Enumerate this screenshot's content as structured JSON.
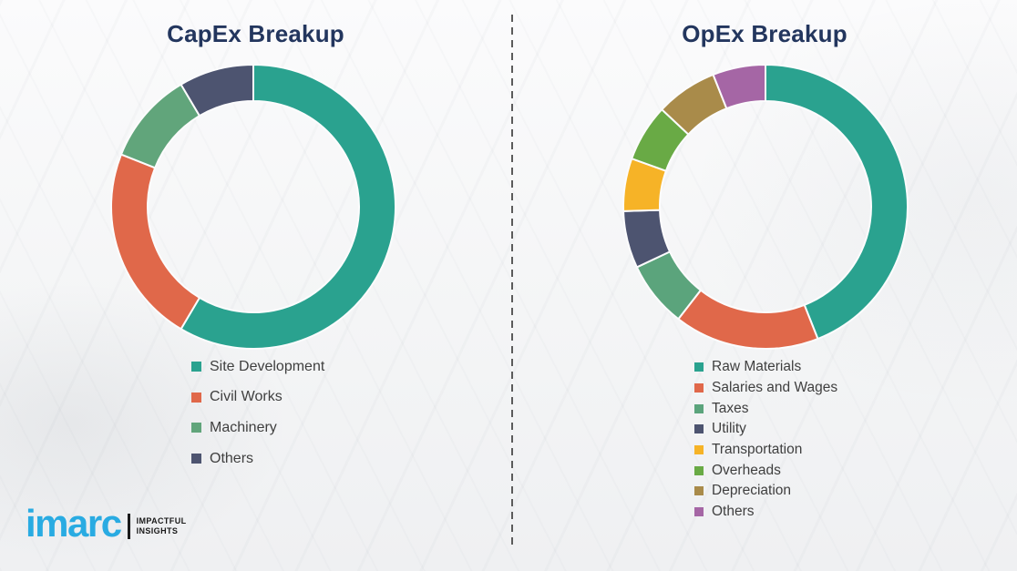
{
  "chart_data": [
    {
      "type": "donut",
      "title": "CapEx Breakup",
      "unit": "percent",
      "start_angle_deg": 0,
      "direction": "clockwise",
      "legend_position": "below-left",
      "segments": [
        {
          "label": "Site Development",
          "value": 58.5,
          "color": "#2aa28f"
        },
        {
          "label": "Civil Works",
          "value": 22.5,
          "color": "#e0684a"
        },
        {
          "label": "Machinery",
          "value": 10.5,
          "color": "#61a57b"
        },
        {
          "label": "Others",
          "value": 8.5,
          "color": "#4d5470"
        }
      ]
    },
    {
      "type": "donut",
      "title": "OpEx Breakup",
      "unit": "percent",
      "start_angle_deg": 0,
      "direction": "clockwise",
      "legend_position": "below-left",
      "segments": [
        {
          "label": "Raw Materials",
          "value": 44,
          "color": "#2aa28f"
        },
        {
          "label": "Salaries and Wages",
          "value": 16.5,
          "color": "#e0684a"
        },
        {
          "label": "Taxes",
          "value": 7.5,
          "color": "#5ba47c"
        },
        {
          "label": "Utility",
          "value": 6.5,
          "color": "#4d5470"
        },
        {
          "label": "Transportation",
          "value": 6,
          "color": "#f6b327"
        },
        {
          "label": "Overheads",
          "value": 6.5,
          "color": "#69aa45"
        },
        {
          "label": "Depreciation",
          "value": 7,
          "color": "#a98b4a"
        },
        {
          "label": "Others",
          "value": 6,
          "color": "#a566a5"
        }
      ]
    }
  ],
  "divider": {
    "style": "vertical-dashed",
    "color": "#5b5b5b"
  },
  "logo": {
    "brand": "imarc",
    "brand_color": "#29abe2",
    "tagline_line1": "IMPACTFUL",
    "tagline_line2": "INSIGHTS"
  },
  "colors": {
    "title_text": "#23365e",
    "legend_text": "#3f3f3f",
    "background": "#f5f6f7"
  }
}
